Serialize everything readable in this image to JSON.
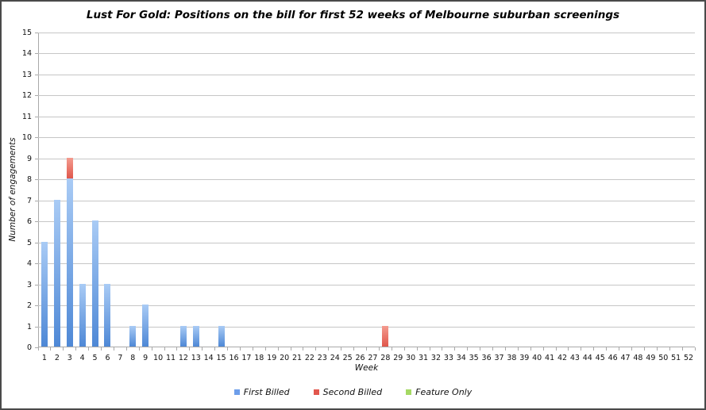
{
  "chart_data": {
    "type": "bar",
    "stacked": true,
    "title": "Lust For Gold: Positions on the bill for first 52 weeks of Melbourne suburban screenings",
    "xlabel": "Week",
    "ylabel": "Number of engagements",
    "ylim": [
      0,
      15
    ],
    "y_tick_step": 1,
    "grid": true,
    "legend_position": "bottom",
    "categories": [
      "1",
      "2",
      "3",
      "4",
      "5",
      "6",
      "7",
      "8",
      "9",
      "10",
      "11",
      "12",
      "13",
      "14",
      "15",
      "16",
      "17",
      "18",
      "19",
      "20",
      "21",
      "22",
      "23",
      "24",
      "25",
      "26",
      "27",
      "28",
      "29",
      "30",
      "31",
      "32",
      "33",
      "34",
      "35",
      "36",
      "37",
      "38",
      "39",
      "40",
      "41",
      "42",
      "43",
      "44",
      "45",
      "46",
      "47",
      "48",
      "49",
      "50",
      "51",
      "52"
    ],
    "series": [
      {
        "name": "First Billed",
        "legend_color": "#6d9eea",
        "color_top": "#a9cbf5",
        "color_bottom": "#4e88d6",
        "values": [
          5,
          7,
          8,
          3,
          6,
          3,
          0,
          1,
          2,
          0,
          0,
          1,
          1,
          0,
          1,
          0,
          0,
          0,
          0,
          0,
          0,
          0,
          0,
          0,
          0,
          0,
          0,
          0,
          0,
          0,
          0,
          0,
          0,
          0,
          0,
          0,
          0,
          0,
          0,
          0,
          0,
          0,
          0,
          0,
          0,
          0,
          0,
          0,
          0,
          0,
          0,
          0
        ]
      },
      {
        "name": "Second Billed",
        "legend_color": "#e2574e",
        "color_top": "#f49b8f",
        "color_bottom": "#e0574b",
        "values": [
          0,
          0,
          1,
          0,
          0,
          0,
          0,
          0,
          0,
          0,
          0,
          0,
          0,
          0,
          0,
          0,
          0,
          0,
          0,
          0,
          0,
          0,
          0,
          0,
          0,
          0,
          0,
          1,
          0,
          0,
          0,
          0,
          0,
          0,
          0,
          0,
          0,
          0,
          0,
          0,
          0,
          0,
          0,
          0,
          0,
          0,
          0,
          0,
          0,
          0,
          0,
          0
        ]
      },
      {
        "name": "Feature Only",
        "legend_color": "#a5d964",
        "color_top": "#c9e79e",
        "color_bottom": "#8fc84e",
        "values": [
          0,
          0,
          0,
          0,
          0,
          0,
          0,
          0,
          0,
          0,
          0,
          0,
          0,
          0,
          0,
          0,
          0,
          0,
          0,
          0,
          0,
          0,
          0,
          0,
          0,
          0,
          0,
          0,
          0,
          0,
          0,
          0,
          0,
          0,
          0,
          0,
          0,
          0,
          0,
          0,
          0,
          0,
          0,
          0,
          0,
          0,
          0,
          0,
          0,
          0,
          0,
          0
        ]
      }
    ],
    "colors": {
      "gridline": "#c6c6c6",
      "axis": "#a9a9a9",
      "text": "#111111",
      "background": "#ffffff",
      "frame_border": "#4a4a4a"
    }
  }
}
